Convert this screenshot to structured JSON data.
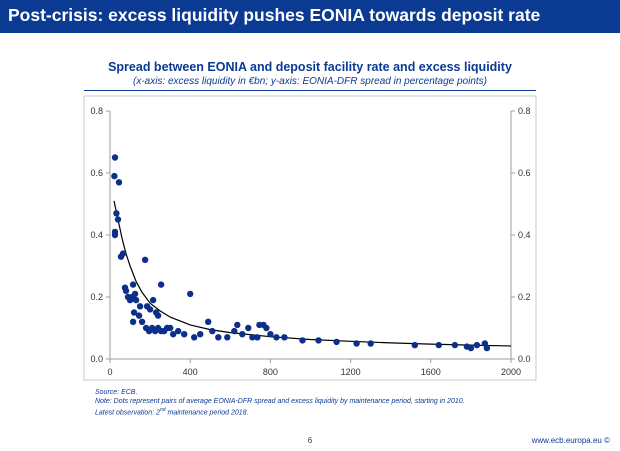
{
  "slide": {
    "title": "Post-crisis: excess liquidity pushes EONIA towards deposit rate",
    "page_number": "6",
    "url": "www.ecb.europa.eu ©"
  },
  "notes": {
    "source": "Source: ECB.",
    "note": "Note: Dots represent pairs of average EONIA-DFR spread and excess liquidity by maintenance period, starting in 2010.",
    "latest_prefix": "Latest observation: 2",
    "latest_sup": "nd",
    "latest_suffix": " maintenance period 2018."
  },
  "colors": {
    "accent": "#0b3a93",
    "dots": "#0b2f8a",
    "curve": "#000000",
    "axis": "#9e9e9e"
  },
  "chart_data": {
    "type": "scatter",
    "title": "Spread between EONIA and deposit facility rate and excess liquidity",
    "subtitle": "(x-axis: excess liquidity in €bn; y-axis: EONIA-DFR spread in percentage points)",
    "xlabel": "excess liquidity in €bn",
    "ylabel": "EONIA-DFR spread in percentage points",
    "xlim": [
      0,
      2000
    ],
    "ylim": [
      0,
      0.8
    ],
    "x_ticks": [
      "0",
      "400",
      "800",
      "1200",
      "1600",
      "2000"
    ],
    "y_ticks_left": [
      "0.0",
      "0.2",
      "0.4",
      "0.6",
      "0.8"
    ],
    "y_ticks_right": [
      "0.0",
      "0.2",
      "0.4",
      "0.6",
      "0.8"
    ],
    "grid": false,
    "series": [
      {
        "name": "Maintenance periods",
        "points": [
          [
            25,
            0.65
          ],
          [
            22,
            0.59
          ],
          [
            45,
            0.57
          ],
          [
            32,
            0.47
          ],
          [
            40,
            0.45
          ],
          [
            25,
            0.41
          ],
          [
            25,
            0.4
          ],
          [
            55,
            0.33
          ],
          [
            65,
            0.34
          ],
          [
            175,
            0.32
          ],
          [
            75,
            0.23
          ],
          [
            80,
            0.22
          ],
          [
            90,
            0.2
          ],
          [
            100,
            0.19
          ],
          [
            110,
            0.2
          ],
          [
            115,
            0.24
          ],
          [
            125,
            0.21
          ],
          [
            150,
            0.17
          ],
          [
            130,
            0.19
          ],
          [
            145,
            0.14
          ],
          [
            185,
            0.17
          ],
          [
            200,
            0.16
          ],
          [
            215,
            0.19
          ],
          [
            230,
            0.15
          ],
          [
            240,
            0.14
          ],
          [
            255,
            0.24
          ],
          [
            400,
            0.21
          ],
          [
            120,
            0.15
          ],
          [
            160,
            0.12
          ],
          [
            115,
            0.12
          ],
          [
            180,
            0.1
          ],
          [
            195,
            0.09
          ],
          [
            210,
            0.1
          ],
          [
            225,
            0.09
          ],
          [
            240,
            0.1
          ],
          [
            255,
            0.09
          ],
          [
            270,
            0.09
          ],
          [
            285,
            0.1
          ],
          [
            300,
            0.1
          ],
          [
            315,
            0.08
          ],
          [
            340,
            0.09
          ],
          [
            370,
            0.08
          ],
          [
            420,
            0.07
          ],
          [
            450,
            0.08
          ],
          [
            490,
            0.12
          ],
          [
            510,
            0.09
          ],
          [
            540,
            0.07
          ],
          [
            585,
            0.07
          ],
          [
            620,
            0.09
          ],
          [
            635,
            0.11
          ],
          [
            660,
            0.08
          ],
          [
            690,
            0.1
          ],
          [
            710,
            0.07
          ],
          [
            735,
            0.07
          ],
          [
            745,
            0.11
          ],
          [
            765,
            0.11
          ],
          [
            780,
            0.1
          ],
          [
            800,
            0.08
          ],
          [
            830,
            0.07
          ],
          [
            870,
            0.07
          ],
          [
            960,
            0.06
          ],
          [
            1040,
            0.06
          ],
          [
            1130,
            0.055
          ],
          [
            1230,
            0.05
          ],
          [
            1300,
            0.05
          ],
          [
            1520,
            0.045
          ],
          [
            1640,
            0.045
          ],
          [
            1720,
            0.045
          ],
          [
            1780,
            0.04
          ],
          [
            1830,
            0.045
          ],
          [
            1870,
            0.05
          ],
          [
            1880,
            0.035
          ],
          [
            1800,
            0.035
          ]
        ]
      },
      {
        "name": "Fitted curve",
        "type": "line",
        "x": [
          20,
          30,
          40,
          50,
          60,
          80,
          100,
          130,
          160,
          200,
          250,
          300,
          400,
          500,
          600,
          800,
          1000,
          1200,
          1400,
          1600,
          1800,
          2000
        ],
        "y": [
          0.51,
          0.48,
          0.45,
          0.42,
          0.39,
          0.34,
          0.3,
          0.25,
          0.215,
          0.18,
          0.155,
          0.135,
          0.11,
          0.095,
          0.085,
          0.072,
          0.063,
          0.057,
          0.052,
          0.048,
          0.045,
          0.042
        ]
      }
    ]
  }
}
